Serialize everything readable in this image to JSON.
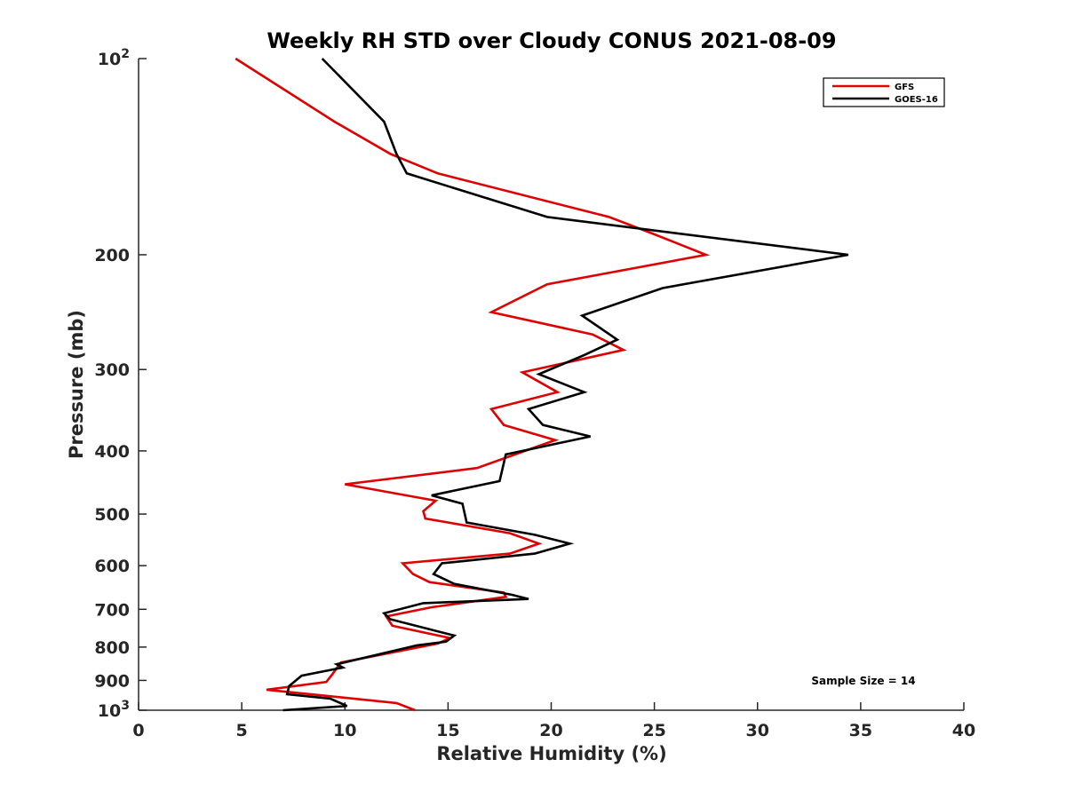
{
  "chart_data": {
    "type": "line",
    "title": "Weekly RH STD over Cloudy CONUS 2021-08-09",
    "xlabel": "Relative Humidity (%)",
    "ylabel": "Pressure (mb)",
    "xlim": [
      0,
      40
    ],
    "ylim": [
      100,
      1000
    ],
    "y_scale": "log",
    "y_reversed": true,
    "x_ticks": [
      0,
      5,
      10,
      15,
      20,
      25,
      30,
      35,
      40
    ],
    "x_tick_labels": [
      "0",
      "5",
      "10",
      "15",
      "20",
      "25",
      "30",
      "35",
      "40"
    ],
    "y_ticks": [
      100,
      200,
      300,
      400,
      500,
      600,
      700,
      800,
      900,
      1000
    ],
    "y_tick_labels": [
      {
        "base": "10",
        "exp": "2"
      },
      {
        "base": "200",
        "exp": ""
      },
      {
        "base": "300",
        "exp": ""
      },
      {
        "base": "400",
        "exp": ""
      },
      {
        "base": "500",
        "exp": ""
      },
      {
        "base": "600",
        "exp": ""
      },
      {
        "base": "700",
        "exp": ""
      },
      {
        "base": "800",
        "exp": ""
      },
      {
        "base": "900",
        "exp": ""
      },
      {
        "base": "10",
        "exp": "3"
      }
    ],
    "grid": false,
    "legend_position": "top-right",
    "annotation": "Sample Size = 14",
    "series": [
      {
        "name": "GFS",
        "color": "#e00000",
        "points": [
          [
            4.7,
            100
          ],
          [
            9.5,
            125
          ],
          [
            12.2,
            140
          ],
          [
            14.5,
            150
          ],
          [
            22.8,
            175
          ],
          [
            24.8,
            185
          ],
          [
            27.5,
            200
          ],
          [
            19.8,
            222
          ],
          [
            17.1,
            245
          ],
          [
            22.0,
            265
          ],
          [
            23.5,
            280
          ],
          [
            18.6,
            303
          ],
          [
            20.3,
            325
          ],
          [
            17.1,
            345
          ],
          [
            17.7,
            365
          ],
          [
            20.2,
            385
          ],
          [
            16.4,
            425
          ],
          [
            10.0,
            450
          ],
          [
            14.4,
            477
          ],
          [
            13.8,
            495
          ],
          [
            13.9,
            508
          ],
          [
            18.0,
            535
          ],
          [
            19.4,
            555
          ],
          [
            18.0,
            575
          ],
          [
            12.8,
            595
          ],
          [
            13.3,
            618
          ],
          [
            14.1,
            636
          ],
          [
            17.7,
            660
          ],
          [
            17.8,
            670
          ],
          [
            14.2,
            695
          ],
          [
            12.0,
            718
          ],
          [
            12.3,
            742
          ],
          [
            15.1,
            775
          ],
          [
            14.5,
            790
          ],
          [
            9.8,
            845
          ],
          [
            9.4,
            880
          ],
          [
            9.1,
            905
          ],
          [
            6.2,
            930
          ],
          [
            12.5,
            975
          ],
          [
            13.4,
            1000
          ]
        ]
      },
      {
        "name": "GOES-16",
        "color": "#000000",
        "points": [
          [
            8.9,
            100
          ],
          [
            11.9,
            125
          ],
          [
            12.5,
            140
          ],
          [
            13.0,
            150
          ],
          [
            19.8,
            175
          ],
          [
            34.4,
            200
          ],
          [
            25.4,
            225
          ],
          [
            21.5,
            248
          ],
          [
            23.2,
            270
          ],
          [
            21.6,
            285
          ],
          [
            19.4,
            305
          ],
          [
            21.6,
            325
          ],
          [
            18.9,
            345
          ],
          [
            19.6,
            365
          ],
          [
            21.9,
            380
          ],
          [
            17.8,
            405
          ],
          [
            17.5,
            445
          ],
          [
            14.2,
            468
          ],
          [
            15.7,
            482
          ],
          [
            15.9,
            515
          ],
          [
            19.2,
            538
          ],
          [
            20.9,
            555
          ],
          [
            19.2,
            575
          ],
          [
            14.7,
            595
          ],
          [
            14.3,
            618
          ],
          [
            15.3,
            640
          ],
          [
            18.1,
            665
          ],
          [
            18.9,
            675
          ],
          [
            13.8,
            685
          ],
          [
            11.9,
            710
          ],
          [
            12.2,
            725
          ],
          [
            15.3,
            768
          ],
          [
            14.9,
            785
          ],
          [
            13.5,
            795
          ],
          [
            9.6,
            850
          ],
          [
            9.9,
            860
          ],
          [
            7.9,
            885
          ],
          [
            7.3,
            918
          ],
          [
            7.2,
            945
          ],
          [
            9.3,
            960
          ],
          [
            10.1,
            985
          ],
          [
            7.0,
            1000
          ]
        ]
      }
    ]
  }
}
